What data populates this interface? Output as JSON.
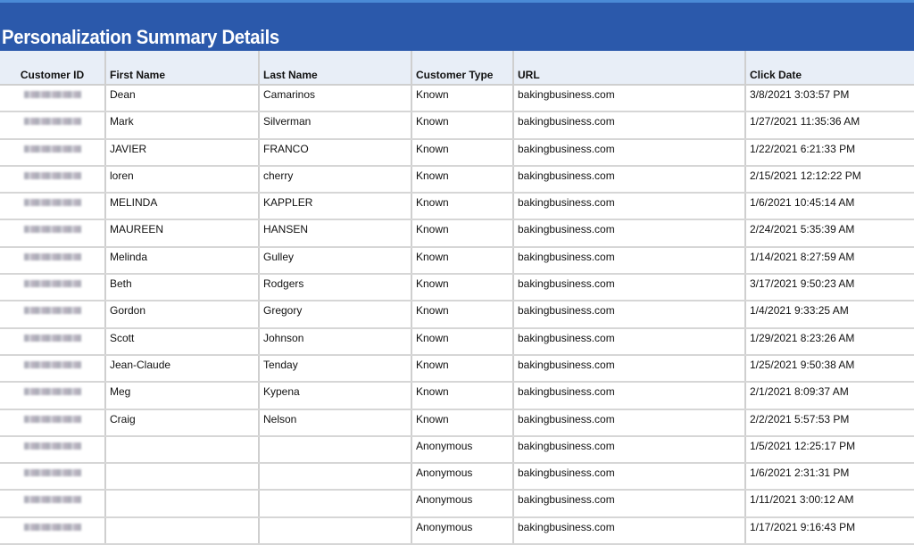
{
  "title": "Personalization Summary Details",
  "colors": {
    "banner": "#2b59ab",
    "header_bg": "#e8eef7"
  },
  "columns": [
    "Customer ID",
    "First Name",
    "Last Name",
    "Customer Type",
    "URL",
    "Click Date"
  ],
  "rows": [
    {
      "first": "Dean",
      "last": "Camarinos",
      "type": "Known",
      "url": "bakingbusiness.com",
      "date": "3/8/2021 3:03:57 PM"
    },
    {
      "first": "Mark",
      "last": "Silverman",
      "type": "Known",
      "url": "bakingbusiness.com",
      "date": "1/27/2021 11:35:36 AM"
    },
    {
      "first": "JAVIER",
      "last": "FRANCO",
      "type": "Known",
      "url": "bakingbusiness.com",
      "date": "1/22/2021 6:21:33 PM"
    },
    {
      "first": "loren",
      "last": "cherry",
      "type": "Known",
      "url": "bakingbusiness.com",
      "date": "2/15/2021 12:12:22 PM"
    },
    {
      "first": "MELINDA",
      "last": "KAPPLER",
      "type": "Known",
      "url": "bakingbusiness.com",
      "date": "1/6/2021 10:45:14 AM"
    },
    {
      "first": "MAUREEN",
      "last": "HANSEN",
      "type": "Known",
      "url": "bakingbusiness.com",
      "date": "2/24/2021 5:35:39 AM"
    },
    {
      "first": "Melinda",
      "last": "Gulley",
      "type": "Known",
      "url": "bakingbusiness.com",
      "date": "1/14/2021 8:27:59 AM"
    },
    {
      "first": "Beth",
      "last": "Rodgers",
      "type": "Known",
      "url": "bakingbusiness.com",
      "date": "3/17/2021 9:50:23 AM"
    },
    {
      "first": "Gordon",
      "last": "Gregory",
      "type": "Known",
      "url": "bakingbusiness.com",
      "date": "1/4/2021 9:33:25 AM"
    },
    {
      "first": "Scott",
      "last": "Johnson",
      "type": "Known",
      "url": "bakingbusiness.com",
      "date": "1/29/2021 8:23:26 AM"
    },
    {
      "first": "Jean-Claude",
      "last": "Tenday",
      "type": "Known",
      "url": "bakingbusiness.com",
      "date": "1/25/2021 9:50:38 AM"
    },
    {
      "first": "Meg",
      "last": "Kypena",
      "type": "Known",
      "url": "bakingbusiness.com",
      "date": "2/1/2021 8:09:37 AM"
    },
    {
      "first": "Craig",
      "last": "Nelson",
      "type": "Known",
      "url": "bakingbusiness.com",
      "date": "2/2/2021 5:57:53 PM"
    },
    {
      "first": "",
      "last": "",
      "type": "Anonymous",
      "url": "bakingbusiness.com",
      "date": "1/5/2021 12:25:17 PM"
    },
    {
      "first": "",
      "last": "",
      "type": "Anonymous",
      "url": "bakingbusiness.com",
      "date": "1/6/2021 2:31:31 PM"
    },
    {
      "first": "",
      "last": "",
      "type": "Anonymous",
      "url": "bakingbusiness.com",
      "date": "1/11/2021 3:00:12 AM"
    },
    {
      "first": "",
      "last": "",
      "type": "Anonymous",
      "url": "bakingbusiness.com",
      "date": "1/17/2021 9:16:43 PM"
    }
  ]
}
